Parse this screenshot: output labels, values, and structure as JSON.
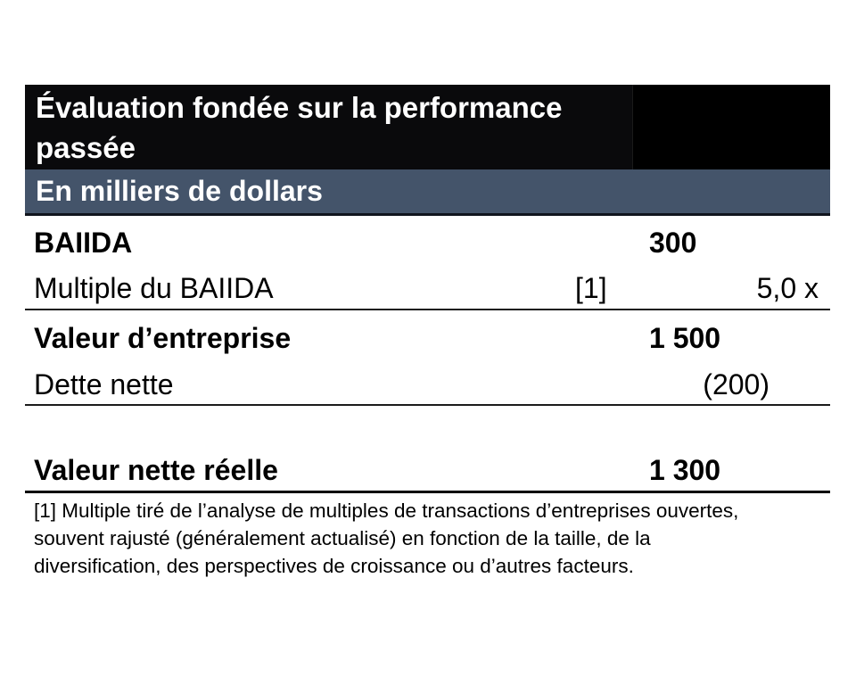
{
  "header": {
    "title": "Évaluation fondée sur la performance passée"
  },
  "subheader": {
    "label": "En milliers de dollars"
  },
  "table": {
    "rows": [
      {
        "label": "BAIIDA",
        "ref": "",
        "value": "300"
      },
      {
        "label": "Multiple du BAIIDA",
        "ref": "[1]",
        "value": "5,0 x"
      },
      {
        "label": "Valeur d’entreprise",
        "ref": "",
        "value": "1 500"
      },
      {
        "label": "Dette nette",
        "ref": "",
        "value": "(200)"
      },
      {
        "label": "Valeur nette réelle",
        "ref": "",
        "value": "1 300"
      }
    ]
  },
  "footnote": {
    "lines": [
      "[1] Multiple tiré de l’analyse de multiples de transactions d’entreprises ouvertes,",
      "souvent rajusté (généralement actualisé) en fonction de la taille, de la",
      "diversification, des perspectives de croissance ou d’autres facteurs."
    ]
  },
  "colors": {
    "title_bar_bg": "#000000",
    "units_bar_bg": "#44546A",
    "header_text": "#FFFFFF",
    "body_text": "#000000"
  }
}
